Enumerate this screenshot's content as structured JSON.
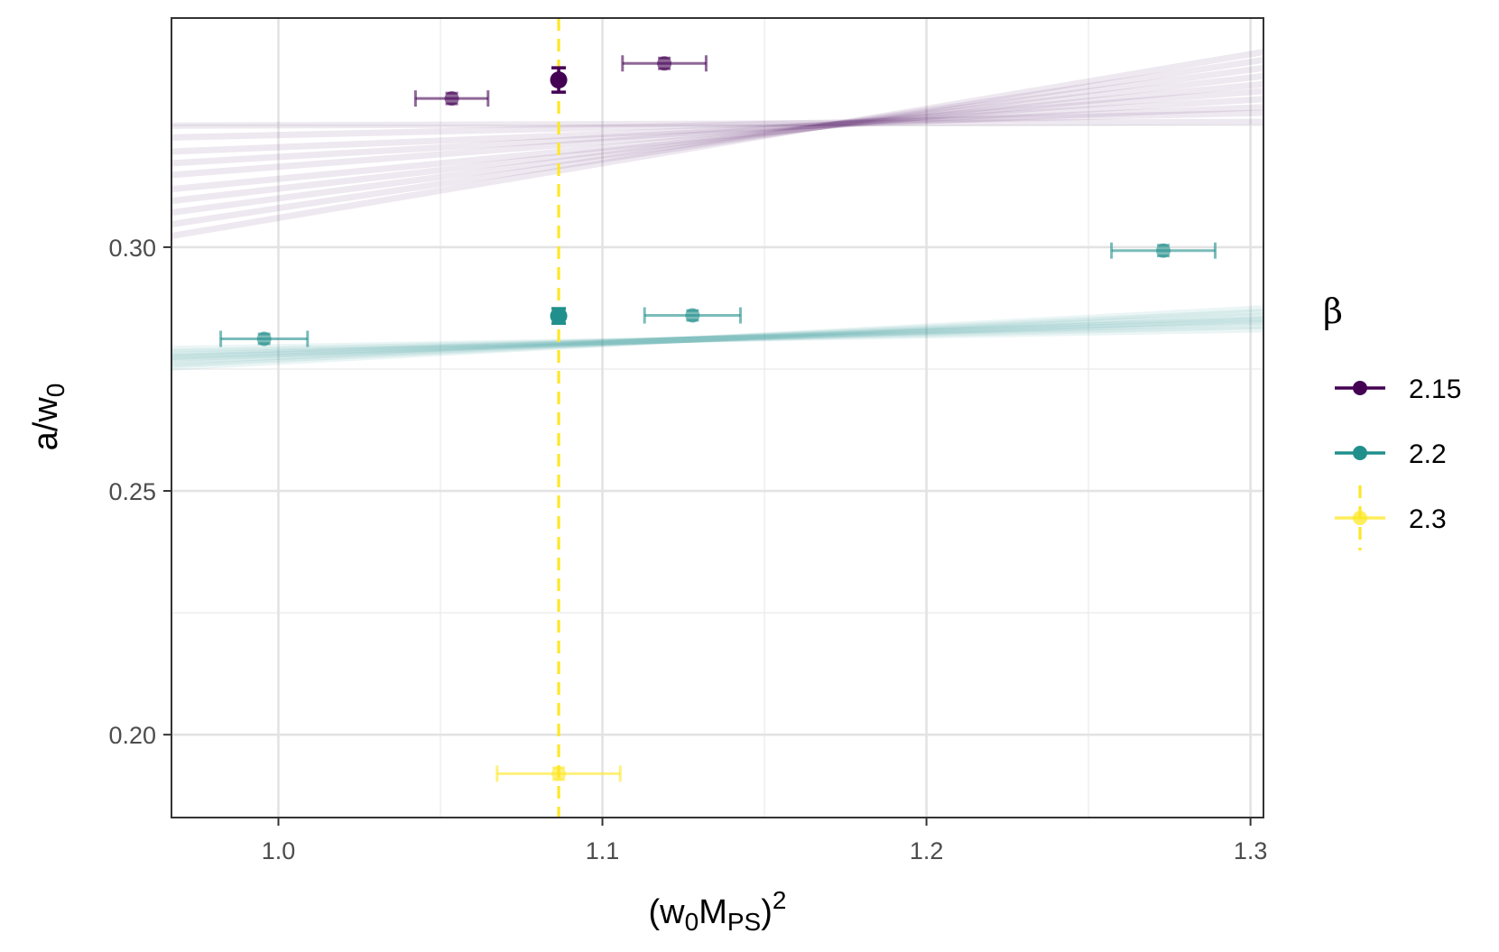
{
  "chart_data": {
    "type": "scatter",
    "xlabel": "(w0MPS)^2",
    "ylabel": "a/w0",
    "xlim": [
      0.967,
      1.304
    ],
    "ylim": [
      0.183,
      0.347
    ],
    "x_ticks": [
      1.0,
      1.1,
      1.2,
      1.3
    ],
    "x_tick_labels": [
      "1.0",
      "1.1",
      "1.2",
      "1.3"
    ],
    "y_ticks": [
      0.2,
      0.25,
      0.3
    ],
    "y_tick_labels": [
      "0.20",
      "0.25",
      "0.30"
    ],
    "x_minor": [
      1.05,
      1.15,
      1.25
    ],
    "y_minor": [
      0.225,
      0.275,
      0.325
    ],
    "reference_x": 1.0865,
    "legend": {
      "title": "β",
      "entries": [
        "2.15",
        "2.2",
        "2.3"
      ],
      "position": "right"
    },
    "series": [
      {
        "name": "2.15",
        "color": "#440154",
        "points": [
          {
            "x": 1.0535,
            "y": 0.3305,
            "xerr": 0.0112,
            "yerr": 0.0011
          },
          {
            "x": 1.1191,
            "y": 0.3377,
            "xerr": 0.0129,
            "yerr": 0.0011
          }
        ],
        "interpolated": {
          "x": 1.0865,
          "y": 0.3343,
          "yerr": 0.0025
        },
        "fit_band": {
          "lines": [
            [
              0.325,
              0.00235
            ],
            [
              0.3165,
              0.051
            ],
            [
              0.308,
              0.1
            ],
            [
              0.3205,
              0.027
            ],
            [
              0.312,
              0.076
            ],
            [
              0.323,
              0.015
            ],
            [
              0.314,
              0.064
            ],
            [
              0.31,
              0.088
            ],
            [
              0.3185,
              0.039
            ],
            [
              0.306,
              0.112
            ]
          ]
        }
      },
      {
        "name": "2.2",
        "color": "#21908c",
        "points": [
          {
            "x": 0.9956,
            "y": 0.2812,
            "xerr": 0.0134,
            "yerr": 0.001
          },
          {
            "x": 1.1278,
            "y": 0.286,
            "xerr": 0.0148,
            "yerr": 0.001
          },
          {
            "x": 1.2731,
            "y": 0.2993,
            "xerr": 0.016,
            "yerr": 0.0011
          }
        ],
        "interpolated": {
          "x": 1.0865,
          "y": 0.2859,
          "yerr": 0.0015
        },
        "fit_band": {
          "lines": [
            [
              0.278,
              0.024
            ],
            [
              0.279,
              0.016
            ],
            [
              0.277,
              0.032
            ],
            [
              0.2785,
              0.02
            ],
            [
              0.2775,
              0.028
            ],
            [
              0.2795,
              0.012
            ],
            [
              0.2765,
              0.036
            ],
            [
              0.2782,
              0.0225
            ]
          ]
        }
      },
      {
        "name": "2.3",
        "color": "#fde725",
        "points": [
          {
            "x": 1.0865,
            "y": 0.192,
            "xerr": 0.019,
            "yerr": 0.0012
          }
        ]
      }
    ]
  }
}
